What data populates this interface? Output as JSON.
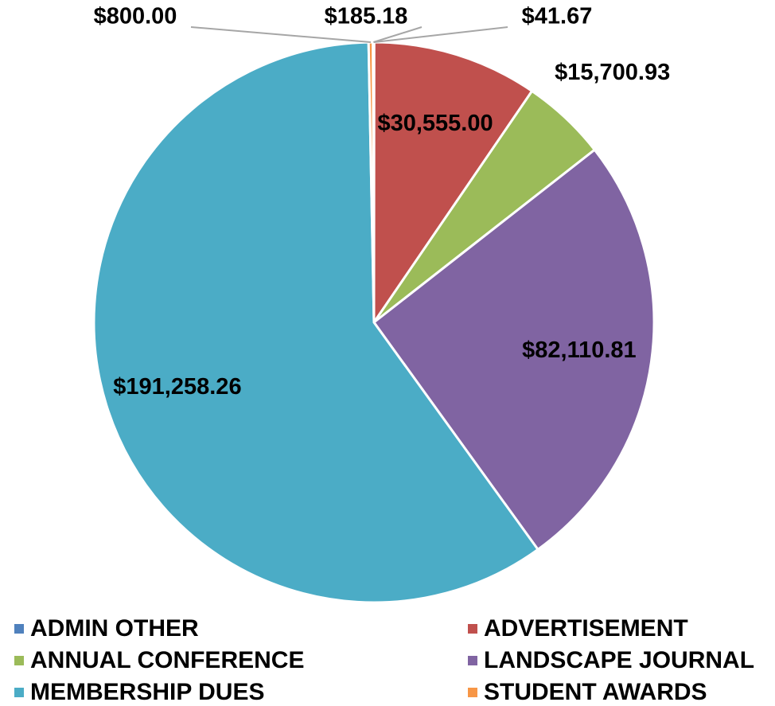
{
  "chart_data": {
    "type": "pie",
    "categories": [
      "ADMIN OTHER",
      "ADVERTISEMENT",
      "ANNUAL CONFERENCE",
      "LANDSCAPE JOURNAL",
      "MEMBERSHIP DUES",
      "STUDENT AWARDS",
      null
    ],
    "values": [
      41.67,
      30555.0,
      15700.93,
      82110.81,
      191258.26,
      800.0,
      185.18
    ],
    "value_labels": [
      "$41.67",
      "$30,555.00",
      "$15,700.93",
      "$82,110.81",
      "$191,258.26",
      "$800.00",
      "$185.18"
    ],
    "colors": [
      "#4f81bd",
      "#c0504d",
      "#9bbb59",
      "#8064a2",
      "#4bacc6",
      "#f79646",
      "#2c4d75"
    ],
    "legend": "bottom"
  }
}
